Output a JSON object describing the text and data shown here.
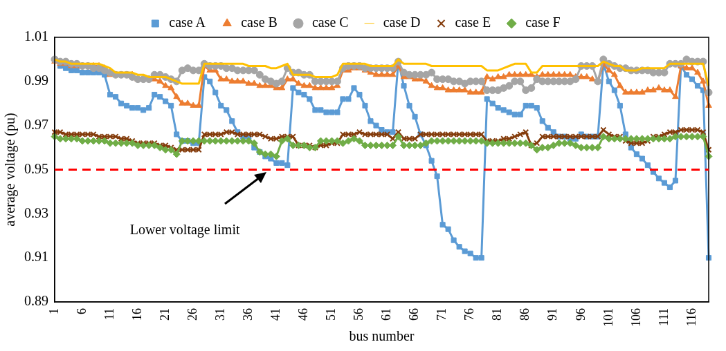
{
  "chart_data": {
    "type": "line",
    "xlabel": "bus number",
    "ylabel": "average voltage (pu)",
    "categories": [
      "1",
      null,
      null,
      null,
      null,
      "6",
      null,
      null,
      null,
      null,
      "11",
      null,
      null,
      null,
      null,
      "16",
      null,
      null,
      null,
      null,
      "21",
      null,
      null,
      null,
      null,
      "26",
      null,
      null,
      null,
      null,
      "31",
      null,
      null,
      null,
      null,
      "36",
      null,
      null,
      null,
      null,
      "41",
      null,
      null,
      null,
      null,
      "46",
      null,
      null,
      null,
      null,
      "51",
      null,
      null,
      null,
      null,
      "56",
      null,
      null,
      null,
      null,
      "61",
      null,
      null,
      null,
      null,
      "66",
      null,
      null,
      null,
      null,
      "71",
      null,
      null,
      null,
      null,
      "76",
      null,
      null,
      null,
      null,
      "81",
      null,
      null,
      null,
      null,
      "86",
      null,
      null,
      null,
      null,
      "91",
      null,
      null,
      null,
      null,
      "96",
      null,
      null,
      null,
      null,
      "101",
      null,
      null,
      null,
      null,
      "106",
      null,
      null,
      null,
      null,
      "111",
      null,
      null,
      null,
      null,
      "116",
      null,
      null,
      null
    ],
    "series": [
      {
        "name": "case A",
        "color": "#5b9bd5",
        "marker": "square",
        "values": [
          1.0,
          0.997,
          0.996,
          0.995,
          0.995,
          0.994,
          0.994,
          0.994,
          0.994,
          0.993,
          0.984,
          0.983,
          0.98,
          0.979,
          0.978,
          0.978,
          0.977,
          0.978,
          0.984,
          0.983,
          0.981,
          0.979,
          0.966,
          0.963,
          0.963,
          0.962,
          0.962,
          0.992,
          0.99,
          0.985,
          0.979,
          0.977,
          0.972,
          0.967,
          0.965,
          0.965,
          0.96,
          0.958,
          0.956,
          0.955,
          0.953,
          0.953,
          0.952,
          0.987,
          0.985,
          0.984,
          0.982,
          0.977,
          0.977,
          0.976,
          0.976,
          0.976,
          0.982,
          0.982,
          0.987,
          0.984,
          0.979,
          0.972,
          0.97,
          0.968,
          0.967,
          0.967,
          0.999,
          0.988,
          0.979,
          0.974,
          0.966,
          0.961,
          0.954,
          0.947,
          0.925,
          0.923,
          0.918,
          0.915,
          0.913,
          0.912,
          0.91,
          0.91,
          0.982,
          0.98,
          0.978,
          0.977,
          0.976,
          0.975,
          0.975,
          0.979,
          0.979,
          0.978,
          0.972,
          0.969,
          0.967,
          0.965,
          0.965,
          0.964,
          0.964,
          0.966,
          0.965,
          0.965,
          0.965,
          0.998,
          0.99,
          0.986,
          0.979,
          0.966,
          0.96,
          0.957,
          0.955,
          0.952,
          0.949,
          0.946,
          0.944,
          0.942,
          0.945,
          0.997,
          0.993,
          0.991,
          0.988,
          0.986,
          0.91
        ]
      },
      {
        "name": "case B",
        "color": "#ed7d31",
        "marker": "triangle",
        "values": [
          0.999,
          0.998,
          0.998,
          0.997,
          0.997,
          0.997,
          0.997,
          0.997,
          0.997,
          0.996,
          0.993,
          0.993,
          0.993,
          0.993,
          0.993,
          0.991,
          0.991,
          0.991,
          0.991,
          0.99,
          0.988,
          0.987,
          0.983,
          0.98,
          0.98,
          0.979,
          0.979,
          0.997,
          0.995,
          0.995,
          0.991,
          0.991,
          0.99,
          0.99,
          0.99,
          0.989,
          0.989,
          0.988,
          0.988,
          0.988,
          0.987,
          0.987,
          0.991,
          0.991,
          0.989,
          0.988,
          0.988,
          0.987,
          0.987,
          0.987,
          0.987,
          0.988,
          0.995,
          0.995,
          0.996,
          0.996,
          0.995,
          0.994,
          0.993,
          0.993,
          0.993,
          0.993,
          0.997,
          0.992,
          0.992,
          0.991,
          0.991,
          0.99,
          0.988,
          0.987,
          0.987,
          0.986,
          0.986,
          0.986,
          0.986,
          0.985,
          0.985,
          0.985,
          0.992,
          0.991,
          0.992,
          0.992,
          0.993,
          0.993,
          0.993,
          0.993,
          0.993,
          0.992,
          0.993,
          0.993,
          0.993,
          0.993,
          0.993,
          0.993,
          0.992,
          0.992,
          0.992,
          0.991,
          0.99,
          0.998,
          0.995,
          0.993,
          0.988,
          0.985,
          0.985,
          0.985,
          0.985,
          0.986,
          0.986,
          0.987,
          0.986,
          0.986,
          0.983,
          0.997,
          0.996,
          0.996,
          0.994,
          0.99,
          0.979
        ]
      },
      {
        "name": "case C",
        "color": "#a5a5a5",
        "marker": "circle",
        "values": [
          1.0,
          0.999,
          0.999,
          0.998,
          0.998,
          0.997,
          0.997,
          0.996,
          0.996,
          0.995,
          0.994,
          0.993,
          0.993,
          0.993,
          0.992,
          0.991,
          0.991,
          0.991,
          0.993,
          0.993,
          0.992,
          0.991,
          0.99,
          0.995,
          0.996,
          0.995,
          0.995,
          0.998,
          0.997,
          0.997,
          0.997,
          0.996,
          0.996,
          0.995,
          0.995,
          0.995,
          0.995,
          0.993,
          0.991,
          0.99,
          0.989,
          0.99,
          0.996,
          0.994,
          0.994,
          0.993,
          0.993,
          0.99,
          0.99,
          0.99,
          0.99,
          0.99,
          0.996,
          0.997,
          0.997,
          0.997,
          0.996,
          0.996,
          0.996,
          0.996,
          0.996,
          0.996,
          0.999,
          0.994,
          0.993,
          0.993,
          0.993,
          0.993,
          0.994,
          0.991,
          0.991,
          0.991,
          0.99,
          0.99,
          0.989,
          0.99,
          0.99,
          0.99,
          0.986,
          0.986,
          0.986,
          0.987,
          0.988,
          0.99,
          0.99,
          0.986,
          0.987,
          0.991,
          0.99,
          0.99,
          0.99,
          0.99,
          0.99,
          0.99,
          0.991,
          0.997,
          0.997,
          0.997,
          0.99,
          1.0,
          0.998,
          0.997,
          0.996,
          0.996,
          0.995,
          0.995,
          0.995,
          0.995,
          0.994,
          0.994,
          0.994,
          0.998,
          0.998,
          0.998,
          1.0,
          0.999,
          0.999,
          0.999,
          0.985
        ]
      },
      {
        "name": "case D",
        "color": "#ffc000",
        "marker": "none",
        "values": [
          1.0,
          0.999,
          0.999,
          0.998,
          0.998,
          0.998,
          0.998,
          0.998,
          0.998,
          0.997,
          0.996,
          0.994,
          0.994,
          0.994,
          0.994,
          0.993,
          0.993,
          0.992,
          0.992,
          0.992,
          0.992,
          0.991,
          0.99,
          0.989,
          0.989,
          0.989,
          0.989,
          0.998,
          0.998,
          0.998,
          0.998,
          0.998,
          0.998,
          0.998,
          0.998,
          0.997,
          0.997,
          0.997,
          0.997,
          0.996,
          0.996,
          0.997,
          0.998,
          0.993,
          0.993,
          0.993,
          0.993,
          0.992,
          0.992,
          0.992,
          0.992,
          0.993,
          0.998,
          0.998,
          0.998,
          0.998,
          0.998,
          0.997,
          0.997,
          0.997,
          0.997,
          0.997,
          1.0,
          0.998,
          0.998,
          0.998,
          0.998,
          0.998,
          0.997,
          0.997,
          0.997,
          0.997,
          0.997,
          0.997,
          0.997,
          0.997,
          0.997,
          0.997,
          0.995,
          0.995,
          0.995,
          0.996,
          0.997,
          0.998,
          0.998,
          0.998,
          0.994,
          0.994,
          0.997,
          0.997,
          0.997,
          0.997,
          0.997,
          0.997,
          0.997,
          0.997,
          0.997,
          0.997,
          0.997,
          0.999,
          0.998,
          0.997,
          0.997,
          0.995,
          0.995,
          0.995,
          0.996,
          0.996,
          0.996,
          0.996,
          0.996,
          0.998,
          0.998,
          0.998,
          0.998,
          0.998,
          0.998,
          0.998,
          0.988
        ]
      },
      {
        "name": "case E",
        "color": "#843c0c",
        "marker": "cross",
        "values": [
          0.967,
          0.967,
          0.966,
          0.966,
          0.966,
          0.966,
          0.966,
          0.966,
          0.965,
          0.965,
          0.965,
          0.965,
          0.964,
          0.964,
          0.963,
          0.962,
          0.962,
          0.962,
          0.962,
          0.961,
          0.961,
          0.96,
          0.959,
          0.959,
          0.959,
          0.959,
          0.959,
          0.966,
          0.966,
          0.966,
          0.966,
          0.967,
          0.967,
          0.966,
          0.966,
          0.966,
          0.966,
          0.966,
          0.965,
          0.964,
          0.964,
          0.965,
          0.965,
          0.965,
          0.961,
          0.961,
          0.961,
          0.96,
          0.961,
          0.961,
          0.962,
          0.962,
          0.966,
          0.966,
          0.966,
          0.967,
          0.966,
          0.966,
          0.966,
          0.966,
          0.966,
          0.964,
          0.967,
          0.964,
          0.964,
          0.964,
          0.966,
          0.966,
          0.966,
          0.966,
          0.966,
          0.966,
          0.966,
          0.966,
          0.966,
          0.966,
          0.966,
          0.966,
          0.963,
          0.963,
          0.963,
          0.964,
          0.964,
          0.965,
          0.966,
          0.967,
          0.961,
          0.962,
          0.965,
          0.965,
          0.965,
          0.965,
          0.965,
          0.965,
          0.965,
          0.965,
          0.965,
          0.965,
          0.965,
          0.968,
          0.966,
          0.965,
          0.965,
          0.963,
          0.962,
          0.962,
          0.962,
          0.963,
          0.965,
          0.965,
          0.966,
          0.967,
          0.967,
          0.968,
          0.968,
          0.968,
          0.968,
          0.967,
          0.959
        ]
      },
      {
        "name": "case F",
        "color": "#70ad47",
        "marker": "diamond",
        "values": [
          0.965,
          0.964,
          0.964,
          0.964,
          0.964,
          0.963,
          0.963,
          0.963,
          0.963,
          0.963,
          0.962,
          0.962,
          0.962,
          0.962,
          0.962,
          0.961,
          0.961,
          0.961,
          0.961,
          0.96,
          0.959,
          0.959,
          0.957,
          0.963,
          0.963,
          0.963,
          0.963,
          0.963,
          0.963,
          0.963,
          0.963,
          0.963,
          0.963,
          0.963,
          0.963,
          0.963,
          0.962,
          0.958,
          0.957,
          0.957,
          0.956,
          0.963,
          0.964,
          0.961,
          0.961,
          0.961,
          0.96,
          0.96,
          0.963,
          0.963,
          0.963,
          0.963,
          0.962,
          0.963,
          0.964,
          0.963,
          0.961,
          0.961,
          0.961,
          0.961,
          0.961,
          0.961,
          0.965,
          0.961,
          0.961,
          0.961,
          0.961,
          0.962,
          0.963,
          0.963,
          0.963,
          0.963,
          0.963,
          0.963,
          0.963,
          0.963,
          0.963,
          0.963,
          0.962,
          0.962,
          0.962,
          0.962,
          0.962,
          0.962,
          0.962,
          0.962,
          0.961,
          0.959,
          0.96,
          0.96,
          0.961,
          0.962,
          0.962,
          0.962,
          0.961,
          0.96,
          0.96,
          0.96,
          0.96,
          0.965,
          0.964,
          0.964,
          0.964,
          0.964,
          0.964,
          0.964,
          0.964,
          0.964,
          0.964,
          0.964,
          0.964,
          0.964,
          0.965,
          0.965,
          0.965,
          0.965,
          0.965,
          0.965,
          0.956
        ]
      }
    ],
    "ylim": [
      0.89,
      1.01
    ],
    "yticks": [
      0.89,
      0.91,
      0.93,
      0.95,
      0.97,
      0.99,
      1.01
    ],
    "grid": false,
    "legend": "top",
    "line_style": "solid",
    "ref_lines": [
      {
        "axis": "y",
        "value": 0.95,
        "color": "#ff0000",
        "line_style": "dashed"
      }
    ],
    "annotations": [
      "Lower voltage limit"
    ]
  }
}
